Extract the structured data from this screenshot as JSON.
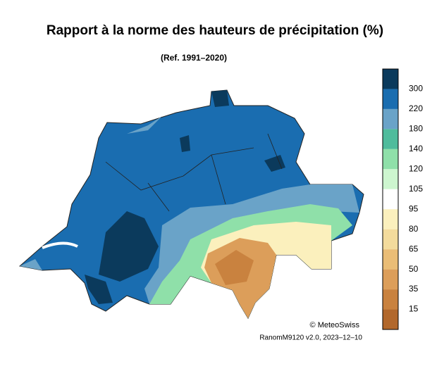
{
  "title": "Rapport à la norme des hauteurs de précipitation (%)",
  "subtitle": "(Ref. 1991–2020)",
  "legend": {
    "colors": [
      "#0b3a5c",
      "#1a6db0",
      "#6aa3c8",
      "#4fbc9c",
      "#8fe0a9",
      "#cdf6cf",
      "#ffffff",
      "#fbf0bd",
      "#f3db9c",
      "#eabd76",
      "#dc9e5a",
      "#c9823f",
      "#b2682c"
    ],
    "ticks": [
      300,
      220,
      180,
      140,
      120,
      105,
      95,
      80,
      65,
      50,
      35,
      15
    ]
  },
  "credit": "© MeteoSwiss",
  "version": "RanomM9120 v2.0, 2023–12–10"
}
